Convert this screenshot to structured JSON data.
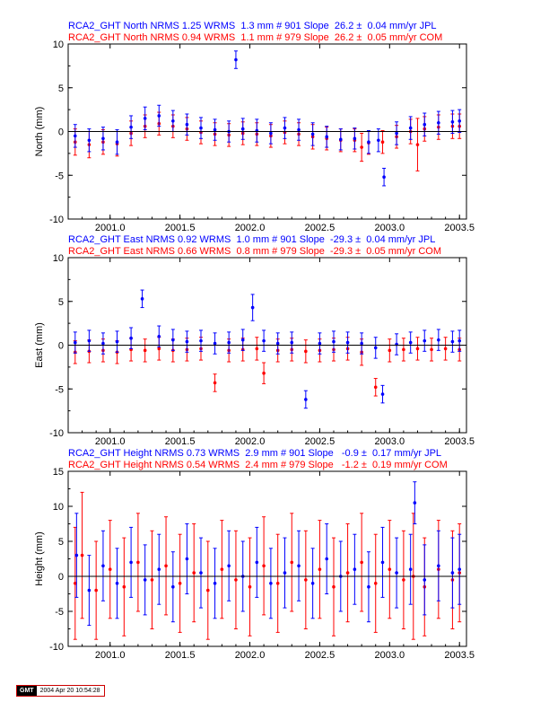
{
  "colors": {
    "jpl": "#0000ff",
    "com": "#ff0000",
    "axis": "#000000",
    "zero_line": "#000000"
  },
  "footer": {
    "logo": "GMT",
    "timestamp": "2004 Apr 20 10:54:28"
  },
  "chart_data": [
    {
      "type": "scatter",
      "component": "north",
      "ylabel": "North (mm)",
      "xlim": [
        2000.7,
        2003.55
      ],
      "ylim": [
        -10,
        10
      ],
      "xticks": [
        2001.0,
        2001.5,
        2002.0,
        2002.5,
        2003.0,
        2003.5
      ],
      "xtick_labels": [
        "2001.0",
        "2001.5",
        "2002.0",
        "2002.5",
        "2003.0",
        "2003.5"
      ],
      "yticks": [
        -10,
        -5,
        0,
        5,
        10
      ],
      "ytick_labels": [
        "-10",
        "-5",
        "0",
        "5",
        "10"
      ],
      "series": [
        {
          "name": "JPL",
          "color": "#0000ff",
          "header": "RCA2_GHT North NRMS 1.25 WRMS  1.3 mm # 901 Slope  26.2 ±  0.04 mm/yr JPL",
          "x": [
            2000.75,
            2000.85,
            2000.95,
            2001.05,
            2001.15,
            2001.25,
            2001.35,
            2001.45,
            2001.55,
            2001.65,
            2001.75,
            2001.85,
            2001.9,
            2001.95,
            2002.05,
            2002.15,
            2002.25,
            2002.35,
            2002.45,
            2002.55,
            2002.65,
            2002.75,
            2002.85,
            2002.92,
            2002.96,
            2003.05,
            2003.15,
            2003.25,
            2003.35,
            2003.45,
            2003.5
          ],
          "y": [
            -0.5,
            -1.0,
            -0.8,
            -1.2,
            0.5,
            1.5,
            1.8,
            1.2,
            0.8,
            0.4,
            0.2,
            0.0,
            8.2,
            0.3,
            0.1,
            -0.2,
            0.4,
            0.2,
            -0.3,
            -0.6,
            -0.9,
            -0.8,
            -1.2,
            -1.0,
            -5.2,
            -0.2,
            0.4,
            0.8,
            1.0,
            1.1,
            1.2
          ],
          "err": [
            1.3,
            1.3,
            1.3,
            1.4,
            1.3,
            1.3,
            1.2,
            1.2,
            1.2,
            1.2,
            1.2,
            1.2,
            1.0,
            1.2,
            1.3,
            1.2,
            1.2,
            1.2,
            1.3,
            1.2,
            1.2,
            1.2,
            1.3,
            1.3,
            1.0,
            1.3,
            1.3,
            1.3,
            1.3,
            1.3,
            1.3
          ]
        },
        {
          "name": "COM",
          "color": "#ff0000",
          "header": "RCA2_GHT North NRMS 0.94 WRMS  1.1 mm # 979 Slope  26.2 ±  0.05 mm/yr COM",
          "x": [
            2000.75,
            2000.85,
            2000.95,
            2001.05,
            2001.15,
            2001.25,
            2001.35,
            2001.45,
            2001.55,
            2001.65,
            2001.75,
            2001.85,
            2001.95,
            2002.05,
            2002.15,
            2002.25,
            2002.35,
            2002.45,
            2002.55,
            2002.65,
            2002.75,
            2002.8,
            2002.85,
            2002.95,
            2003.05,
            2003.15,
            2003.2,
            2003.25,
            2003.35,
            2003.45,
            2003.5
          ],
          "y": [
            -1.2,
            -1.5,
            -1.2,
            -1.4,
            -0.2,
            0.6,
            0.9,
            0.6,
            0.3,
            -0.1,
            -0.3,
            -0.4,
            -0.2,
            -0.3,
            -0.5,
            -0.1,
            -0.3,
            -0.6,
            -0.8,
            -1.0,
            -1.0,
            -1.8,
            -1.3,
            -1.2,
            -0.6,
            0.0,
            -1.5,
            0.3,
            0.5,
            0.6,
            0.6
          ],
          "err": [
            1.5,
            1.5,
            1.4,
            1.4,
            1.4,
            1.3,
            1.3,
            1.3,
            1.3,
            1.3,
            1.3,
            1.3,
            1.3,
            1.3,
            1.3,
            1.3,
            1.3,
            1.4,
            1.3,
            1.3,
            1.3,
            1.6,
            1.3,
            1.3,
            1.3,
            1.4,
            3.0,
            1.4,
            1.4,
            1.4,
            1.4
          ]
        }
      ]
    },
    {
      "type": "scatter",
      "component": "east",
      "ylabel": "East (mm)",
      "xlim": [
        2000.7,
        2003.55
      ],
      "ylim": [
        -10,
        10
      ],
      "xticks": [
        2001.0,
        2001.5,
        2002.0,
        2002.5,
        2003.0,
        2003.5
      ],
      "xtick_labels": [
        "2001.0",
        "2001.5",
        "2002.0",
        "2002.5",
        "2003.0",
        "2003.5"
      ],
      "yticks": [
        -10,
        -5,
        0,
        5,
        10
      ],
      "ytick_labels": [
        "-10",
        "-5",
        "0",
        "5",
        "10"
      ],
      "series": [
        {
          "name": "JPL",
          "color": "#0000ff",
          "header": "RCA2_GHT East NRMS 0.92 WRMS  1.0 mm # 901 Slope  -29.3 ±  0.04 mm/yr JPL",
          "x": [
            2000.75,
            2000.85,
            2000.95,
            2001.05,
            2001.15,
            2001.23,
            2001.35,
            2001.45,
            2001.55,
            2001.65,
            2001.75,
            2001.85,
            2001.95,
            2002.02,
            2002.1,
            2002.2,
            2002.3,
            2002.4,
            2002.5,
            2002.6,
            2002.7,
            2002.8,
            2002.9,
            2002.95,
            2003.05,
            2003.15,
            2003.25,
            2003.35,
            2003.45,
            2003.5
          ],
          "y": [
            0.3,
            0.5,
            0.2,
            0.4,
            0.8,
            5.3,
            1.0,
            0.6,
            0.4,
            0.5,
            0.2,
            0.3,
            0.6,
            4.3,
            0.5,
            0.2,
            0.3,
            -6.2,
            0.2,
            0.4,
            0.3,
            0.2,
            -0.3,
            -5.6,
            0.1,
            0.3,
            0.5,
            0.6,
            0.4,
            0.5
          ],
          "err": [
            1.2,
            1.2,
            1.2,
            1.2,
            1.2,
            1.0,
            1.2,
            1.2,
            1.2,
            1.2,
            1.2,
            1.2,
            1.2,
            1.5,
            1.2,
            1.2,
            1.2,
            1.0,
            1.2,
            1.2,
            1.2,
            1.2,
            1.2,
            1.0,
            1.2,
            1.2,
            1.2,
            1.2,
            1.2,
            1.2
          ]
        },
        {
          "name": "COM",
          "color": "#ff0000",
          "header": "RCA2_GHT East NRMS 0.66 WRMS  0.8 mm # 979 Slope  -29.3 ±  0.05 mm/yr COM",
          "x": [
            2000.75,
            2000.85,
            2000.95,
            2001.05,
            2001.15,
            2001.25,
            2001.35,
            2001.45,
            2001.55,
            2001.65,
            2001.75,
            2001.85,
            2001.95,
            2002.05,
            2002.1,
            2002.2,
            2002.3,
            2002.4,
            2002.5,
            2002.6,
            2002.7,
            2002.8,
            2002.9,
            2003.0,
            2003.1,
            2003.2,
            2003.3,
            2003.4,
            2003.5
          ],
          "y": [
            -0.8,
            -0.7,
            -0.6,
            -0.8,
            -0.5,
            -0.6,
            -0.4,
            -0.6,
            -0.5,
            -0.4,
            -4.3,
            -0.6,
            -0.5,
            -0.4,
            -3.2,
            -0.6,
            -0.5,
            -0.7,
            -0.6,
            -0.5,
            -0.4,
            -0.8,
            -4.8,
            -0.6,
            -0.5,
            -0.4,
            -0.5,
            -0.4,
            -0.5
          ],
          "err": [
            1.3,
            1.3,
            1.3,
            1.3,
            1.3,
            1.3,
            1.3,
            1.3,
            1.3,
            1.3,
            1.0,
            1.3,
            1.3,
            1.3,
            1.2,
            1.3,
            1.3,
            1.3,
            1.3,
            1.3,
            1.3,
            1.5,
            1.0,
            1.3,
            1.3,
            1.3,
            1.3,
            1.3,
            1.3
          ]
        }
      ]
    },
    {
      "type": "scatter",
      "component": "height",
      "ylabel": "Height (mm)",
      "xlim": [
        2000.7,
        2003.55
      ],
      "ylim": [
        -10,
        15
      ],
      "xticks": [
        2001.0,
        2001.5,
        2002.0,
        2002.5,
        2003.0,
        2003.5
      ],
      "xtick_labels": [
        "2001.0",
        "2001.5",
        "2002.0",
        "2002.5",
        "2003.0",
        "2003.5"
      ],
      "yticks": [
        -10,
        -5,
        0,
        5,
        10,
        15
      ],
      "ytick_labels": [
        "-10",
        "-5",
        "0",
        "5",
        "10",
        "15"
      ],
      "series": [
        {
          "name": "JPL",
          "color": "#0000ff",
          "header": "RCA2_GHT Height NRMS 0.73 WRMS  2.9 mm # 901 Slope   -0.9 ±  0.17 mm/yr JPL",
          "x": [
            2000.76,
            2000.85,
            2000.95,
            2001.05,
            2001.15,
            2001.25,
            2001.35,
            2001.45,
            2001.55,
            2001.65,
            2001.75,
            2001.85,
            2001.95,
            2002.05,
            2002.15,
            2002.25,
            2002.35,
            2002.45,
            2002.55,
            2002.65,
            2002.75,
            2002.85,
            2002.95,
            2003.05,
            2003.15,
            2003.18,
            2003.25,
            2003.35,
            2003.45,
            2003.5
          ],
          "y": [
            3.0,
            -2.0,
            1.5,
            -1.0,
            2.0,
            -0.5,
            1.0,
            -1.5,
            2.5,
            0.5,
            -1.0,
            1.5,
            0.0,
            2.0,
            -1.0,
            0.5,
            1.5,
            -1.0,
            2.5,
            0.0,
            1.0,
            -1.5,
            2.0,
            0.5,
            1.0,
            10.5,
            -0.5,
            1.5,
            0.5,
            1.0
          ],
          "err": [
            6.0,
            5.0,
            5.0,
            5.0,
            5.0,
            5.0,
            5.0,
            5.0,
            5.0,
            5.0,
            5.0,
            5.0,
            5.0,
            5.0,
            5.0,
            5.0,
            5.0,
            5.0,
            5.0,
            5.0,
            5.0,
            5.0,
            5.0,
            5.0,
            5.0,
            3.0,
            5.0,
            5.0,
            5.0,
            5.0
          ]
        },
        {
          "name": "COM",
          "color": "#ff0000",
          "header": "RCA2_GHT Height NRMS 0.54 WRMS  2.4 mm # 979 Slope   -1.2 ±  0.19 mm/yr COM",
          "x": [
            2000.75,
            2000.8,
            2000.9,
            2001.0,
            2001.1,
            2001.2,
            2001.3,
            2001.4,
            2001.5,
            2001.6,
            2001.7,
            2001.8,
            2001.9,
            2002.0,
            2002.1,
            2002.2,
            2002.3,
            2002.4,
            2002.5,
            2002.6,
            2002.7,
            2002.8,
            2002.9,
            2003.0,
            2003.1,
            2003.17,
            2003.25,
            2003.35,
            2003.45,
            2003.5
          ],
          "y": [
            -1.0,
            3.0,
            -2.0,
            1.0,
            -1.5,
            2.0,
            -0.5,
            1.5,
            -1.0,
            0.5,
            -2.0,
            1.0,
            -0.5,
            -1.5,
            1.5,
            -1.0,
            2.0,
            -0.5,
            1.0,
            -1.5,
            0.5,
            2.0,
            -1.0,
            1.0,
            -0.5,
            0.0,
            -1.5,
            1.0,
            -0.5,
            0.5
          ],
          "err": [
            8.0,
            9.0,
            7.0,
            7.0,
            7.0,
            7.0,
            7.0,
            7.0,
            7.0,
            7.0,
            7.0,
            7.0,
            7.0,
            7.0,
            7.0,
            7.0,
            7.0,
            7.0,
            7.0,
            7.0,
            7.0,
            7.0,
            7.0,
            7.0,
            7.0,
            9.0,
            7.0,
            7.0,
            7.0,
            7.0
          ]
        }
      ]
    }
  ]
}
